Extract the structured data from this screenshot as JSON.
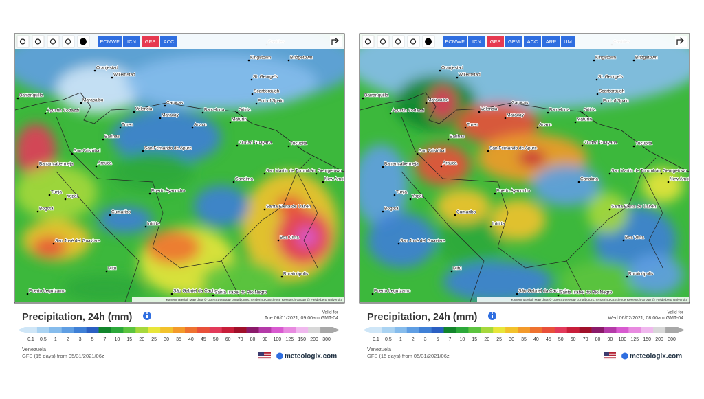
{
  "legend": {
    "title": "Precipitation, 24h (mm)",
    "values": [
      0.1,
      0.5,
      1,
      2,
      3,
      5,
      7,
      10,
      15,
      20,
      25,
      30,
      35,
      40,
      45,
      50,
      60,
      70,
      80,
      90,
      100,
      125,
      150,
      200,
      300
    ],
    "colors": [
      "#cfe6f7",
      "#aad3f2",
      "#86bcec",
      "#5f9ee3",
      "#3f80d6",
      "#2a5fc2",
      "#12852c",
      "#2ca83a",
      "#5cc43f",
      "#a6d83c",
      "#e8e63a",
      "#f2c22c",
      "#f39a2a",
      "#ee7230",
      "#e8503a",
      "#e23a5a",
      "#c81e3a",
      "#a0102a",
      "#8a1a6a",
      "#b43aa8",
      "#d85ad0",
      "#e88ae0",
      "#f0b8ee",
      "#d8d8d8",
      "#a8a8a8"
    ]
  },
  "cities": [
    "Castries",
    "Kingstown",
    "Bridgetown",
    "St. George's",
    "Scarborough",
    "Port of Spain",
    "Oranjestad",
    "Willemstad",
    "Barranquilla",
    "Maracaibo",
    "Valencia",
    "Caracas",
    "Barcelona",
    "Maracay",
    "Anaco",
    "Maturín",
    "Güiria",
    "Agustin Codazzi",
    "Turen",
    "Barinas",
    "San Cristóbal",
    "San Fernando de Apure",
    "Ciudad Guayana",
    "Tucupita",
    "Barrancabermeja",
    "Arauca",
    "San Martín de Turumbán",
    "Georgetown",
    "New Amsterdam",
    "Canaima",
    "Tunja",
    "Yopal",
    "Puerto Ayacucho",
    "Bogotá",
    "Cumaribo",
    "Inírida",
    "Santa Elena de Uairén",
    "San José del Guaviare",
    "Boa Vista",
    "Mitú",
    "São Gabriel da Cachoeira",
    "Santa Isabel do Rio Negro",
    "Rorainópolis",
    "Puerto Leguízamo"
  ],
  "panels": [
    {
      "buttons": [
        "ECMWF",
        "ICN",
        "GFS",
        "ACC"
      ],
      "active": "GFS",
      "credit": "Kartenmaterial: Map data © OpenStreetMap contributors, rendering GIScience Research Group @ Heidelberg University",
      "valid_label": "Valid for",
      "valid": "Tue 06/01/2021, 09:00am GMT-04",
      "region": "Venezuela",
      "run": "GFS (15 days) from 05/31/2021/06z",
      "brand": "meteologix.com"
    },
    {
      "buttons": [
        "ECMWF",
        "ICN",
        "GFS",
        "GEM",
        "ACC",
        "ARP",
        "UM"
      ],
      "active": "GFS",
      "credit": "Kartenmaterial: Map data © OpenStreetMap contributors, rendering GIScience Research Group @ Heidelberg University",
      "valid_label": "Valid for",
      "valid": "Wed 06/02/2021, 08:00am GMT-04",
      "region": "Venezuela",
      "run": "GFS (15 days) from 05/31/2021/06z",
      "brand": "meteologix.com"
    }
  ]
}
